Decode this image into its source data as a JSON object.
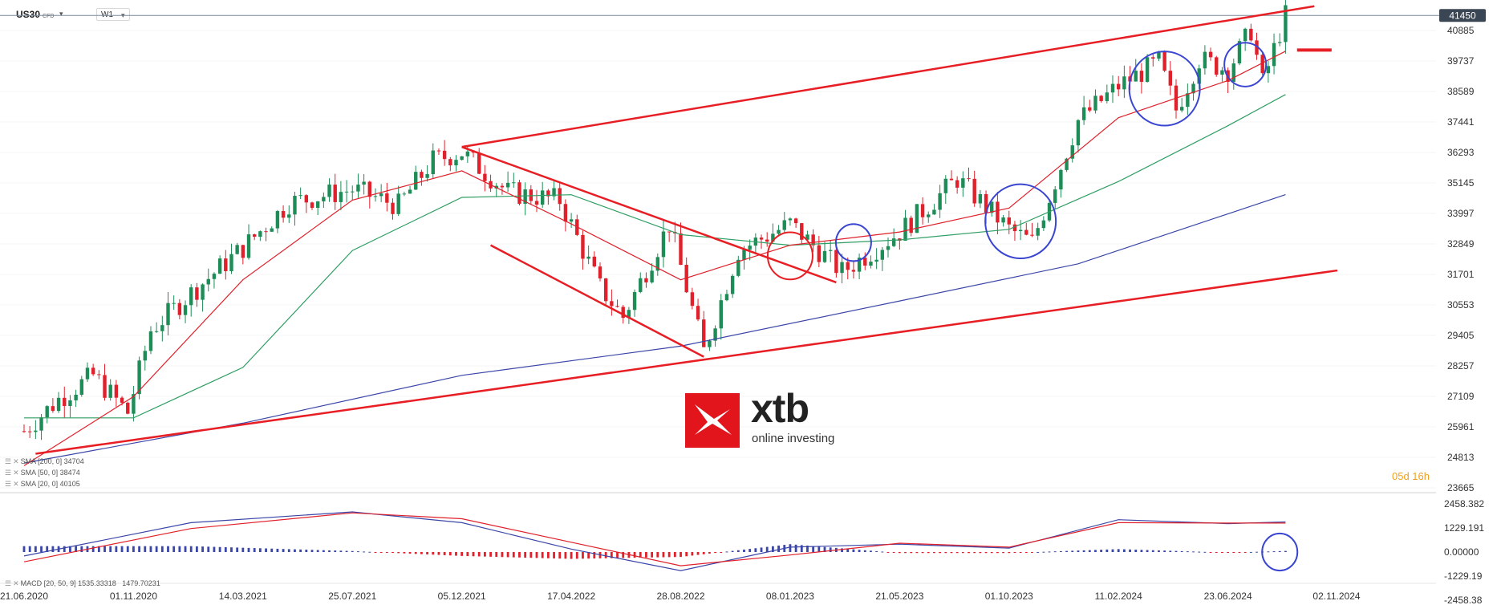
{
  "toolbar": {
    "symbol": "US30",
    "symbol_badge": "CFD",
    "timeframe": "W1"
  },
  "price_label": "41450",
  "countdown": "05d 16h",
  "logo": {
    "word": "xtb",
    "tagline": "online investing"
  },
  "colors": {
    "bull": "#1e8c57",
    "bear": "#e0202a",
    "sma20": "#e0202a",
    "sma50": "#2e9e62",
    "sma200": "#3a46a8",
    "trend": "#e81e25",
    "circle_red": "#e81e25",
    "circle_blue": "#3a46d0",
    "macd": "#3a46a8",
    "signal": "#e0202a"
  },
  "icons": [
    "menu-icon",
    "close-icon",
    "chevron-down-icon"
  ],
  "indicator_legend": [
    {
      "label": "SMA [200, 0]",
      "value": "34704"
    },
    {
      "label": "SMA [50, 0]",
      "value": "38474"
    },
    {
      "label": "SMA [20, 0]",
      "value": "40105"
    }
  ],
  "macd_legend": {
    "label": "MACD [20, 50, 9]",
    "v1": "1535.33318",
    "v2": "1479.70231"
  },
  "chart_data": {
    "type": "candlestick",
    "symbol": "US30",
    "timeframe": "W1",
    "price_axis_ticks": [
      "40885",
      "39737",
      "38589",
      "37441",
      "36293",
      "35145",
      "33997",
      "32849",
      "31701",
      "30553",
      "29405",
      "28257",
      "27109",
      "25961",
      "24813",
      "23665"
    ],
    "macd_axis_ticks": [
      "2458.382",
      "1229.191",
      "0.00000",
      "-1229.19",
      "-2458.38"
    ],
    "date_ticks": [
      "21.06.2020",
      "01.11.2020",
      "14.03.2021",
      "25.07.2021",
      "05.12.2021",
      "17.04.2022",
      "28.08.2022",
      "08.01.2023",
      "21.05.2023",
      "01.10.2023",
      "11.02.2024",
      "23.06.2024",
      "02.11.2024"
    ],
    "close_path": [
      {
        "date": "2020-06-21",
        "close": 25800
      },
      {
        "date": "2020-08-02",
        "close": 27000
      },
      {
        "date": "2020-09-13",
        "close": 27900
      },
      {
        "date": "2020-10-25",
        "close": 26500
      },
      {
        "date": "2020-11-22",
        "close": 29600
      },
      {
        "date": "2021-01-10",
        "close": 31000
      },
      {
        "date": "2021-03-14",
        "close": 32700
      },
      {
        "date": "2021-05-09",
        "close": 34400
      },
      {
        "date": "2021-07-25",
        "close": 34900
      },
      {
        "date": "2021-09-19",
        "close": 34300
      },
      {
        "date": "2021-10-31",
        "close": 36000
      },
      {
        "date": "2021-12-05",
        "close": 36300
      },
      {
        "date": "2022-01-30",
        "close": 34800
      },
      {
        "date": "2022-04-03",
        "close": 34500
      },
      {
        "date": "2022-05-22",
        "close": 31200
      },
      {
        "date": "2022-06-19",
        "close": 30100
      },
      {
        "date": "2022-08-14",
        "close": 33600
      },
      {
        "date": "2022-09-25",
        "close": 28800
      },
      {
        "date": "2022-11-06",
        "close": 32600
      },
      {
        "date": "2023-01-08",
        "close": 33600
      },
      {
        "date": "2023-03-12",
        "close": 31800
      },
      {
        "date": "2023-05-21",
        "close": 33300
      },
      {
        "date": "2023-07-30",
        "close": 35300
      },
      {
        "date": "2023-10-01",
        "close": 33400
      },
      {
        "date": "2023-10-29",
        "close": 32900
      },
      {
        "date": "2023-12-24",
        "close": 37500
      },
      {
        "date": "2024-02-11",
        "close": 38800
      },
      {
        "date": "2024-03-31",
        "close": 39700
      },
      {
        "date": "2024-04-21",
        "close": 37900
      },
      {
        "date": "2024-05-19",
        "close": 39800
      },
      {
        "date": "2024-06-23",
        "close": 39400
      },
      {
        "date": "2024-07-21",
        "close": 40900
      },
      {
        "date": "2024-08-04",
        "close": 38900
      },
      {
        "date": "2024-09-01",
        "close": 41450
      }
    ],
    "sma20_path": [
      {
        "date": "2020-06-21",
        "value": 24500
      },
      {
        "date": "2020-11-01",
        "value": 27100
      },
      {
        "date": "2021-03-14",
        "value": 31500
      },
      {
        "date": "2021-07-25",
        "value": 34500
      },
      {
        "date": "2021-12-05",
        "value": 35600
      },
      {
        "date": "2022-04-17",
        "value": 33600
      },
      {
        "date": "2022-08-28",
        "value": 31500
      },
      {
        "date": "2023-01-08",
        "value": 32800
      },
      {
        "date": "2023-05-21",
        "value": 33300
      },
      {
        "date": "2023-10-01",
        "value": 34200
      },
      {
        "date": "2024-02-11",
        "value": 37600
      },
      {
        "date": "2024-06-23",
        "value": 39000
      },
      {
        "date": "2024-09-01",
        "value": 40105
      }
    ],
    "sma50_path": [
      {
        "date": "2020-06-21",
        "value": 26300
      },
      {
        "date": "2020-11-01",
        "value": 26300
      },
      {
        "date": "2021-03-14",
        "value": 28200
      },
      {
        "date": "2021-07-25",
        "value": 32600
      },
      {
        "date": "2021-12-05",
        "value": 34600
      },
      {
        "date": "2022-04-17",
        "value": 34700
      },
      {
        "date": "2022-08-28",
        "value": 33200
      },
      {
        "date": "2023-01-08",
        "value": 32800
      },
      {
        "date": "2023-05-21",
        "value": 33000
      },
      {
        "date": "2023-10-01",
        "value": 33400
      },
      {
        "date": "2024-02-11",
        "value": 35200
      },
      {
        "date": "2024-06-23",
        "value": 37300
      },
      {
        "date": "2024-09-01",
        "value": 38474
      }
    ],
    "sma200_path": [
      {
        "date": "2020-06-21",
        "value": 24600
      },
      {
        "date": "2021-03-14",
        "value": 26100
      },
      {
        "date": "2021-12-05",
        "value": 27900
      },
      {
        "date": "2022-08-28",
        "value": 29000
      },
      {
        "date": "2023-05-21",
        "value": 30700
      },
      {
        "date": "2023-12-24",
        "value": 32100
      },
      {
        "date": "2024-09-01",
        "value": 34704
      }
    ],
    "trendlines": [
      {
        "name": "upper",
        "from": {
          "date": "2021-12-05",
          "value": 36500
        },
        "to": {
          "date": "2024-10-06",
          "value": 41800
        }
      },
      {
        "name": "lower",
        "from": {
          "date": "2020-07-05",
          "value": 24950
        },
        "to": {
          "date": "2024-11-03",
          "value": 31850
        }
      },
      {
        "name": "channel-top",
        "from": {
          "date": "2021-12-05",
          "value": 36500
        },
        "to": {
          "date": "2023-03-05",
          "value": 31400
        }
      },
      {
        "name": "channel-bottom",
        "from": {
          "date": "2022-01-09",
          "value": 32800
        },
        "to": {
          "date": "2022-09-25",
          "value": 28600
        }
      },
      {
        "name": "resistance-mark",
        "from": {
          "date": "2024-09-15",
          "value": 40150
        },
        "to": {
          "date": "2024-10-27",
          "value": 40150
        }
      }
    ],
    "annotations": [
      {
        "shape": "circle",
        "color": "red",
        "date": "2023-01-08",
        "value": 32400
      },
      {
        "shape": "circle",
        "color": "blue",
        "date": "2023-03-26",
        "value": 32900
      },
      {
        "shape": "circle",
        "color": "blue",
        "date": "2023-10-15",
        "value": 33700
      },
      {
        "shape": "circle",
        "color": "blue",
        "date": "2024-04-07",
        "value": 38700
      },
      {
        "shape": "circle",
        "color": "blue",
        "date": "2024-07-14",
        "value": 39600
      },
      {
        "shape": "circle",
        "color": "blue",
        "pane": "macd",
        "date": "2024-08-25",
        "value": 0
      }
    ],
    "macd_path": [
      {
        "date": "2020-06-21",
        "macd": -200,
        "signal": -500
      },
      {
        "date": "2021-01-10",
        "macd": 1500,
        "signal": 1200
      },
      {
        "date": "2021-07-25",
        "macd": 2050,
        "signal": 2000
      },
      {
        "date": "2021-12-05",
        "macd": 1500,
        "signal": 1700
      },
      {
        "date": "2022-04-17",
        "macd": 150,
        "signal": 500
      },
      {
        "date": "2022-08-28",
        "macd": -950,
        "signal": -700
      },
      {
        "date": "2023-01-08",
        "macd": 250,
        "signal": -150
      },
      {
        "date": "2023-05-21",
        "macd": 400,
        "signal": 450
      },
      {
        "date": "2023-10-01",
        "macd": 200,
        "signal": 250
      },
      {
        "date": "2024-02-11",
        "macd": 1650,
        "signal": 1500
      },
      {
        "date": "2024-06-23",
        "macd": 1450,
        "signal": 1480
      },
      {
        "date": "2024-09-01",
        "macd": 1535,
        "signal": 1480
      }
    ]
  }
}
